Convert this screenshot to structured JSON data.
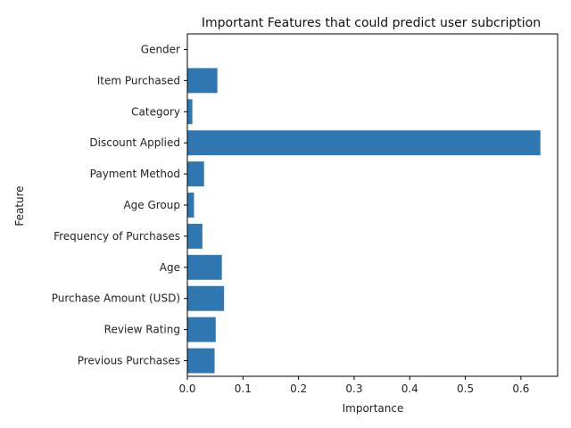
{
  "chart_data": {
    "type": "bar",
    "orientation": "horizontal",
    "title": "Important Features that could predict user subcription",
    "xlabel": "Importance",
    "ylabel": "Feature",
    "categories": [
      "Gender",
      "Item Purchased",
      "Category",
      "Discount Applied",
      "Payment Method",
      "Age Group",
      "Frequency of Purchases",
      "Age",
      "Purchase Amount (USD)",
      "Review Rating",
      "Previous Purchases"
    ],
    "values": [
      0.0,
      0.054,
      0.009,
      0.635,
      0.03,
      0.012,
      0.027,
      0.062,
      0.066,
      0.051,
      0.049
    ],
    "xlim": [
      0,
      0.666
    ],
    "xticks": [
      0,
      0.1,
      0.2,
      0.3,
      0.4,
      0.5,
      0.6
    ],
    "xtick_labels": [
      "0.0",
      "0.1",
      "0.2",
      "0.3",
      "0.4",
      "0.5",
      "0.6"
    ],
    "grid": false,
    "bar_color": "#2f77b0"
  }
}
